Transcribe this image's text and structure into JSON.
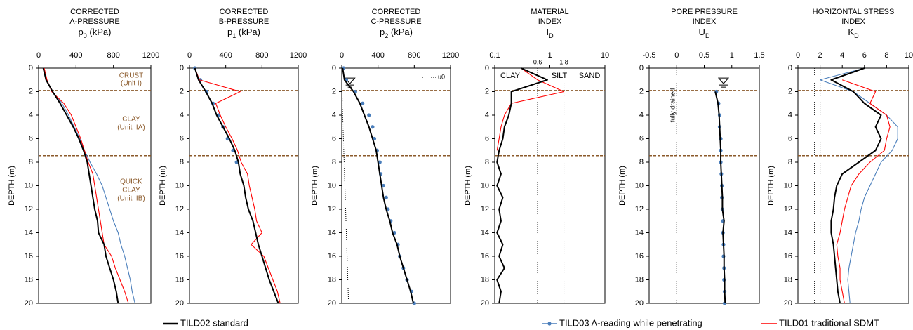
{
  "legend": [
    {
      "name": "TILD02 standard",
      "color": "#000000"
    },
    {
      "name": "TILD03 A-reading while penetrating",
      "color": "#4a7ebb"
    },
    {
      "name": "TILD01 traditional SDMT",
      "color": "#ff0000"
    }
  ],
  "layer_boundaries": [
    1.9,
    7.45
  ],
  "layer_color": "#8b5a2b",
  "chart_data": [
    {
      "type": "line",
      "title": [
        "CORRECTED",
        "A-PRESSURE"
      ],
      "x_label": [
        "p",
        "0",
        " (kPa)"
      ],
      "y_label": "DEPTH (m)",
      "xlim": [
        0,
        1200
      ],
      "xticks": [
        0,
        400,
        800,
        1200
      ],
      "ylim": [
        0,
        20
      ],
      "yticks": [
        0,
        2,
        4,
        6,
        8,
        10,
        12,
        14,
        16,
        18,
        20
      ],
      "annotations": [
        "CRUST",
        "(Unit I)",
        "CLAY",
        "(Unit IIA)",
        "QUICK",
        "CLAY",
        "(Unit IIB)"
      ],
      "y": [
        0,
        1,
        2,
        3,
        4,
        5,
        6,
        7,
        8,
        9,
        10,
        11,
        12,
        13,
        14,
        15,
        16,
        17,
        18,
        19,
        20
      ],
      "series": [
        {
          "color": "#4a7ebb",
          "markers": false,
          "values": [
            50,
            80,
            150,
            250,
            320,
            380,
            440,
            490,
            550,
            620,
            680,
            720,
            760,
            800,
            850,
            880,
            920,
            950,
            980,
            1000,
            1030
          ]
        },
        {
          "color": "#ff0000",
          "markers": false,
          "values": [
            60,
            90,
            140,
            270,
            350,
            400,
            450,
            490,
            530,
            580,
            600,
            620,
            640,
            660,
            680,
            700,
            780,
            820,
            870,
            920,
            960
          ]
        },
        {
          "color": "#000000",
          "markers": false,
          "values": [
            50,
            80,
            150,
            230,
            300,
            370,
            430,
            480,
            520,
            540,
            560,
            580,
            600,
            630,
            640,
            700,
            720,
            760,
            800,
            830,
            850
          ]
        }
      ]
    },
    {
      "type": "line",
      "title": [
        "CORRECTED",
        "B-PRESSURE"
      ],
      "x_label": [
        "p",
        "1",
        " (kPa)"
      ],
      "y_label": "DEPTH (m)",
      "xlim": [
        0,
        1200
      ],
      "xticks": [
        0,
        400,
        800,
        1200
      ],
      "ylim": [
        0,
        20
      ],
      "yticks": [
        0,
        2,
        4,
        6,
        8,
        10,
        12,
        14,
        16,
        18,
        20
      ],
      "y": [
        0,
        1,
        2,
        3,
        4,
        5,
        6,
        7,
        8,
        9,
        10,
        11,
        12,
        13,
        14,
        15,
        16,
        17,
        18,
        19,
        20
      ],
      "series": [
        {
          "color": "#4a7ebb",
          "markers": true,
          "values": [
            60,
            120,
            190,
            260,
            320,
            370,
            420,
            480,
            520,
            null,
            null,
            null,
            null,
            null,
            null,
            null,
            null,
            null,
            null,
            null,
            null
          ]
        },
        {
          "color": "#ff0000",
          "markers": false,
          "values": [
            60,
            110,
            560,
            290,
            340,
            400,
            470,
            530,
            570,
            640,
            660,
            690,
            720,
            740,
            800,
            680,
            820,
            870,
            920,
            970,
            1000
          ]
        },
        {
          "color": "#000000",
          "markers": false,
          "values": [
            60,
            100,
            180,
            250,
            300,
            370,
            440,
            500,
            540,
            560,
            600,
            620,
            650,
            700,
            730,
            760,
            800,
            840,
            880,
            930,
            980
          ]
        }
      ]
    },
    {
      "type": "line",
      "title": [
        "CORRECTED",
        "C-PRESSURE"
      ],
      "x_label": [
        "p",
        "2",
        " (kPa)"
      ],
      "y_label": "DEPTH (m)",
      "xlim": [
        0,
        1200
      ],
      "xticks": [
        0,
        400,
        800,
        1200
      ],
      "ylim": [
        0,
        20
      ],
      "yticks": [
        0,
        2,
        4,
        6,
        8,
        10,
        12,
        14,
        16,
        18,
        20
      ],
      "u0": {
        "label": "u0",
        "x": [
          0,
          75
        ],
        "y": [
          1.5,
          20
        ]
      },
      "y": [
        0,
        1,
        2,
        3,
        4,
        5,
        6,
        7,
        8,
        9,
        10,
        11,
        12,
        13,
        14,
        15,
        16,
        17,
        18,
        19,
        20
      ],
      "series": [
        {
          "color": "#4a7ebb",
          "markers": true,
          "values": [
            20,
            50,
            150,
            230,
            300,
            340,
            360,
            390,
            420,
            430,
            460,
            490,
            510,
            540,
            580,
            620,
            640,
            680,
            720,
            770,
            800
          ]
        },
        {
          "color": "#000000",
          "markers": false,
          "values": [
            10,
            30,
            130,
            200,
            250,
            300,
            340,
            380,
            400,
            420,
            440,
            460,
            490,
            530,
            560,
            610,
            640,
            680,
            720,
            760,
            790
          ]
        }
      ]
    },
    {
      "type": "line",
      "log_x": true,
      "title": [
        "MATERIAL",
        "INDEX"
      ],
      "x_label": [
        "I",
        "D"
      ],
      "y_label": "DEPTH (m)",
      "xlim": [
        0.1,
        10
      ],
      "xticks": [
        0.1,
        1,
        10
      ],
      "ylim": [
        0,
        20
      ],
      "yticks": [
        0,
        2,
        4,
        6,
        8,
        10,
        12,
        14,
        16,
        18,
        20
      ],
      "vlines": [
        0.6,
        1.8
      ],
      "zones": [
        "CLAY",
        "SILT",
        "SAND"
      ],
      "y": [
        0,
        1,
        2,
        3,
        4,
        5,
        6,
        7,
        8,
        9,
        10,
        11,
        12,
        13,
        14,
        15,
        16,
        17,
        18,
        19,
        20
      ],
      "series": [
        {
          "color": "#ff0000",
          "markers": false,
          "values": [
            0.3,
            0.6,
            1.8,
            0.2,
            0.15,
            0.13,
            0.12,
            0.11,
            null,
            null,
            null,
            null,
            null,
            null,
            null,
            null,
            null,
            null,
            null,
            null,
            null
          ]
        },
        {
          "color": "#000000",
          "markers": false,
          "values": [
            0.3,
            0.9,
            0.2,
            0.2,
            0.18,
            0.15,
            0.14,
            0.12,
            0.11,
            0.13,
            0.11,
            0.14,
            0.12,
            0.13,
            0.11,
            0.14,
            0.12,
            0.15,
            0.11,
            0.13,
            0.12
          ]
        }
      ]
    },
    {
      "type": "line",
      "title": [
        "PORE PRESSURE",
        "INDEX"
      ],
      "x_label": [
        "U",
        "D"
      ],
      "y_label": "DEPTH (m)",
      "xlim": [
        -0.5,
        1.5
      ],
      "xticks": [
        -0.5,
        0,
        0.5,
        1,
        1.5
      ],
      "ylim": [
        0,
        20
      ],
      "yticks": [
        0,
        2,
        4,
        6,
        8,
        10,
        12,
        14,
        16,
        18,
        20
      ],
      "vlines": [
        0
      ],
      "vline_label": "fully drained",
      "y": [
        0,
        1,
        2,
        3,
        4,
        5,
        6,
        7,
        8,
        9,
        10,
        11,
        12,
        13,
        14,
        15,
        16,
        17,
        18,
        19,
        20
      ],
      "series": [
        {
          "color": "#4a7ebb",
          "markers": true,
          "values": [
            null,
            null,
            0.72,
            0.76,
            0.78,
            0.78,
            0.8,
            0.8,
            0.8,
            0.81,
            0.82,
            0.82,
            0.83,
            0.84,
            0.84,
            0.85,
            0.85,
            0.86,
            0.86,
            0.87,
            0.87
          ]
        },
        {
          "color": "#000000",
          "markers": false,
          "values": [
            null,
            null,
            0.7,
            0.75,
            0.77,
            0.78,
            0.79,
            0.8,
            0.8,
            0.81,
            0.82,
            0.83,
            0.83,
            0.86,
            0.84,
            0.85,
            0.86,
            0.86,
            0.87,
            0.87,
            0.88
          ]
        }
      ]
    },
    {
      "type": "line",
      "title": [
        "HORIZONTAL STRESS",
        "INDEX"
      ],
      "x_label": [
        "K",
        "D"
      ],
      "y_label": "DEPTH (m)",
      "xlim": [
        0,
        10
      ],
      "xticks": [
        0,
        2,
        4,
        6,
        8,
        10
      ],
      "ylim": [
        0,
        20
      ],
      "yticks": [
        0,
        2,
        4,
        6,
        8,
        10,
        12,
        14,
        16,
        18,
        20
      ],
      "vlines": [
        1.5,
        2
      ],
      "y": [
        0,
        1,
        2,
        3,
        4,
        5,
        6,
        7,
        8,
        9,
        10,
        11,
        12,
        13,
        14,
        15,
        16,
        17,
        18,
        19,
        20
      ],
      "series": [
        {
          "color": "#4a7ebb",
          "markers": false,
          "values": [
            6,
            2,
            5,
            6.5,
            8,
            9,
            9,
            8.5,
            7.5,
            7,
            6.5,
            6,
            5.7,
            5.5,
            5.2,
            5,
            4.8,
            4.6,
            4.5,
            4.6,
            4.7
          ]
        },
        {
          "color": "#ff0000",
          "markers": false,
          "values": [
            null,
            4,
            7,
            6.5,
            8,
            8.3,
            8,
            7.8,
            6.5,
            5.5,
            4.8,
            4.5,
            4.2,
            4,
            3.8,
            3.5,
            3.6,
            3.8,
            3.8,
            4,
            4.2
          ]
        },
        {
          "color": "#000000",
          "markers": false,
          "values": [
            6,
            3,
            5,
            6,
            7.5,
            7,
            7.5,
            7,
            5.5,
            4,
            3.5,
            3.3,
            3.2,
            3,
            3,
            3.2,
            3.3,
            3.4,
            3.5,
            3.6,
            3.8
          ]
        }
      ]
    }
  ]
}
